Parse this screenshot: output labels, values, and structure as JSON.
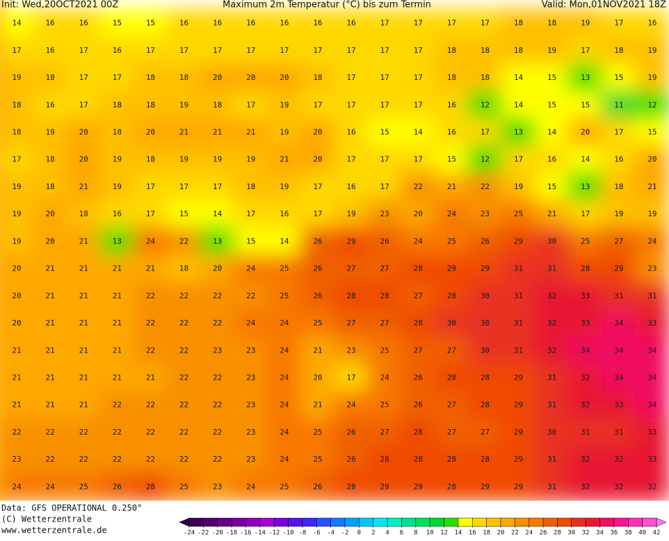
{
  "header": {
    "init": "Init: Wed,20OCT2021 00Z",
    "title": "Maximum 2m Temperatur (°C) bis zum Termin",
    "valid": "Valid: Mon,01NOV2021 18Z"
  },
  "footer": {
    "data": "Data: GFS OPERATIONAL 0.250°",
    "copyright": "(C) Wetterzentrale",
    "url": "www.wetterzentrale.de"
  },
  "colorbar": {
    "ticks": [
      -24,
      -22,
      -20,
      -18,
      -16,
      -14,
      -12,
      -10,
      -8,
      -6,
      -4,
      -2,
      0,
      2,
      4,
      6,
      8,
      10,
      12,
      14,
      16,
      18,
      20,
      22,
      24,
      26,
      28,
      30,
      32,
      34,
      36,
      38,
      40,
      42
    ],
    "colors": [
      "#2a0040",
      "#3c0058",
      "#500070",
      "#640088",
      "#7800a0",
      "#9000bc",
      "#a800d4",
      "#7a00e0",
      "#5a10f0",
      "#3c28ff",
      "#2850ff",
      "#1478ff",
      "#00a0ff",
      "#00c8ff",
      "#00e8f0",
      "#00f0c0",
      "#00e090",
      "#00e060",
      "#00d830",
      "#28e000",
      "#ffff00",
      "#ffd800",
      "#ffc000",
      "#ffa800",
      "#f89000",
      "#f87800",
      "#f06000",
      "#f04800",
      "#e83020",
      "#e81830",
      "#f01060",
      "#ff1490",
      "#ff30b8",
      "#ff50d8",
      "#ff78f0"
    ]
  },
  "map": {
    "rows": [
      [
        14,
        16,
        16,
        15,
        15,
        16,
        16,
        16,
        16,
        16,
        16,
        17,
        17,
        17,
        17,
        18,
        18,
        19,
        17,
        16
      ],
      [
        17,
        16,
        17,
        16,
        17,
        17,
        17,
        17,
        17,
        17,
        17,
        17,
        17,
        18,
        18,
        18,
        19,
        17,
        18,
        19
      ],
      [
        19,
        18,
        17,
        17,
        18,
        18,
        20,
        20,
        20,
        18,
        17,
        17,
        17,
        18,
        18,
        14,
        15,
        13,
        15,
        19
      ],
      [
        18,
        16,
        17,
        18,
        18,
        19,
        18,
        17,
        19,
        17,
        17,
        17,
        17,
        16,
        12,
        14,
        15,
        15,
        11,
        12
      ],
      [
        18,
        19,
        20,
        18,
        20,
        21,
        21,
        21,
        19,
        20,
        16,
        15,
        14,
        16,
        17,
        13,
        14,
        20,
        17,
        15
      ],
      [
        17,
        18,
        20,
        19,
        18,
        19,
        19,
        19,
        21,
        20,
        17,
        17,
        17,
        15,
        12,
        17,
        16,
        14,
        16,
        20
      ],
      [
        19,
        18,
        21,
        19,
        17,
        17,
        17,
        18,
        19,
        17,
        16,
        17,
        22,
        21,
        22,
        19,
        15,
        13,
        18,
        21
      ],
      [
        19,
        20,
        18,
        16,
        17,
        15,
        14,
        17,
        16,
        17,
        19,
        23,
        20,
        24,
        23,
        25,
        21,
        17,
        19,
        19
      ],
      [
        19,
        20,
        21,
        13,
        24,
        22,
        13,
        15,
        14,
        26,
        29,
        26,
        24,
        25,
        26,
        29,
        30,
        25,
        27,
        24
      ],
      [
        20,
        21,
        21,
        21,
        21,
        18,
        20,
        24,
        25,
        26,
        27,
        27,
        28,
        29,
        29,
        31,
        31,
        28,
        29,
        23
      ],
      [
        20,
        21,
        21,
        21,
        22,
        22,
        22,
        22,
        25,
        26,
        28,
        28,
        27,
        28,
        30,
        31,
        32,
        33,
        31,
        31
      ],
      [
        20,
        21,
        21,
        21,
        22,
        22,
        22,
        24,
        24,
        25,
        27,
        27,
        28,
        30,
        30,
        31,
        32,
        33,
        34,
        33
      ],
      [
        21,
        21,
        21,
        21,
        22,
        22,
        23,
        23,
        24,
        21,
        23,
        25,
        27,
        27,
        30,
        31,
        32,
        34,
        34,
        34
      ],
      [
        21,
        21,
        21,
        21,
        21,
        22,
        22,
        23,
        24,
        20,
        17,
        24,
        26,
        28,
        28,
        29,
        31,
        32,
        34,
        34
      ],
      [
        21,
        21,
        21,
        22,
        22,
        22,
        22,
        23,
        24,
        21,
        24,
        25,
        26,
        27,
        28,
        29,
        31,
        32,
        33,
        34
      ],
      [
        22,
        22,
        22,
        22,
        22,
        22,
        22,
        23,
        24,
        25,
        26,
        27,
        28,
        27,
        27,
        29,
        30,
        31,
        31,
        33
      ],
      [
        23,
        22,
        22,
        22,
        22,
        22,
        22,
        23,
        24,
        25,
        26,
        28,
        28,
        28,
        28,
        29,
        31,
        32,
        32,
        33
      ],
      [
        24,
        24,
        25,
        26,
        28,
        25,
        23,
        24,
        25,
        26,
        28,
        29,
        29,
        28,
        29,
        29,
        31,
        32,
        32,
        32
      ]
    ]
  }
}
